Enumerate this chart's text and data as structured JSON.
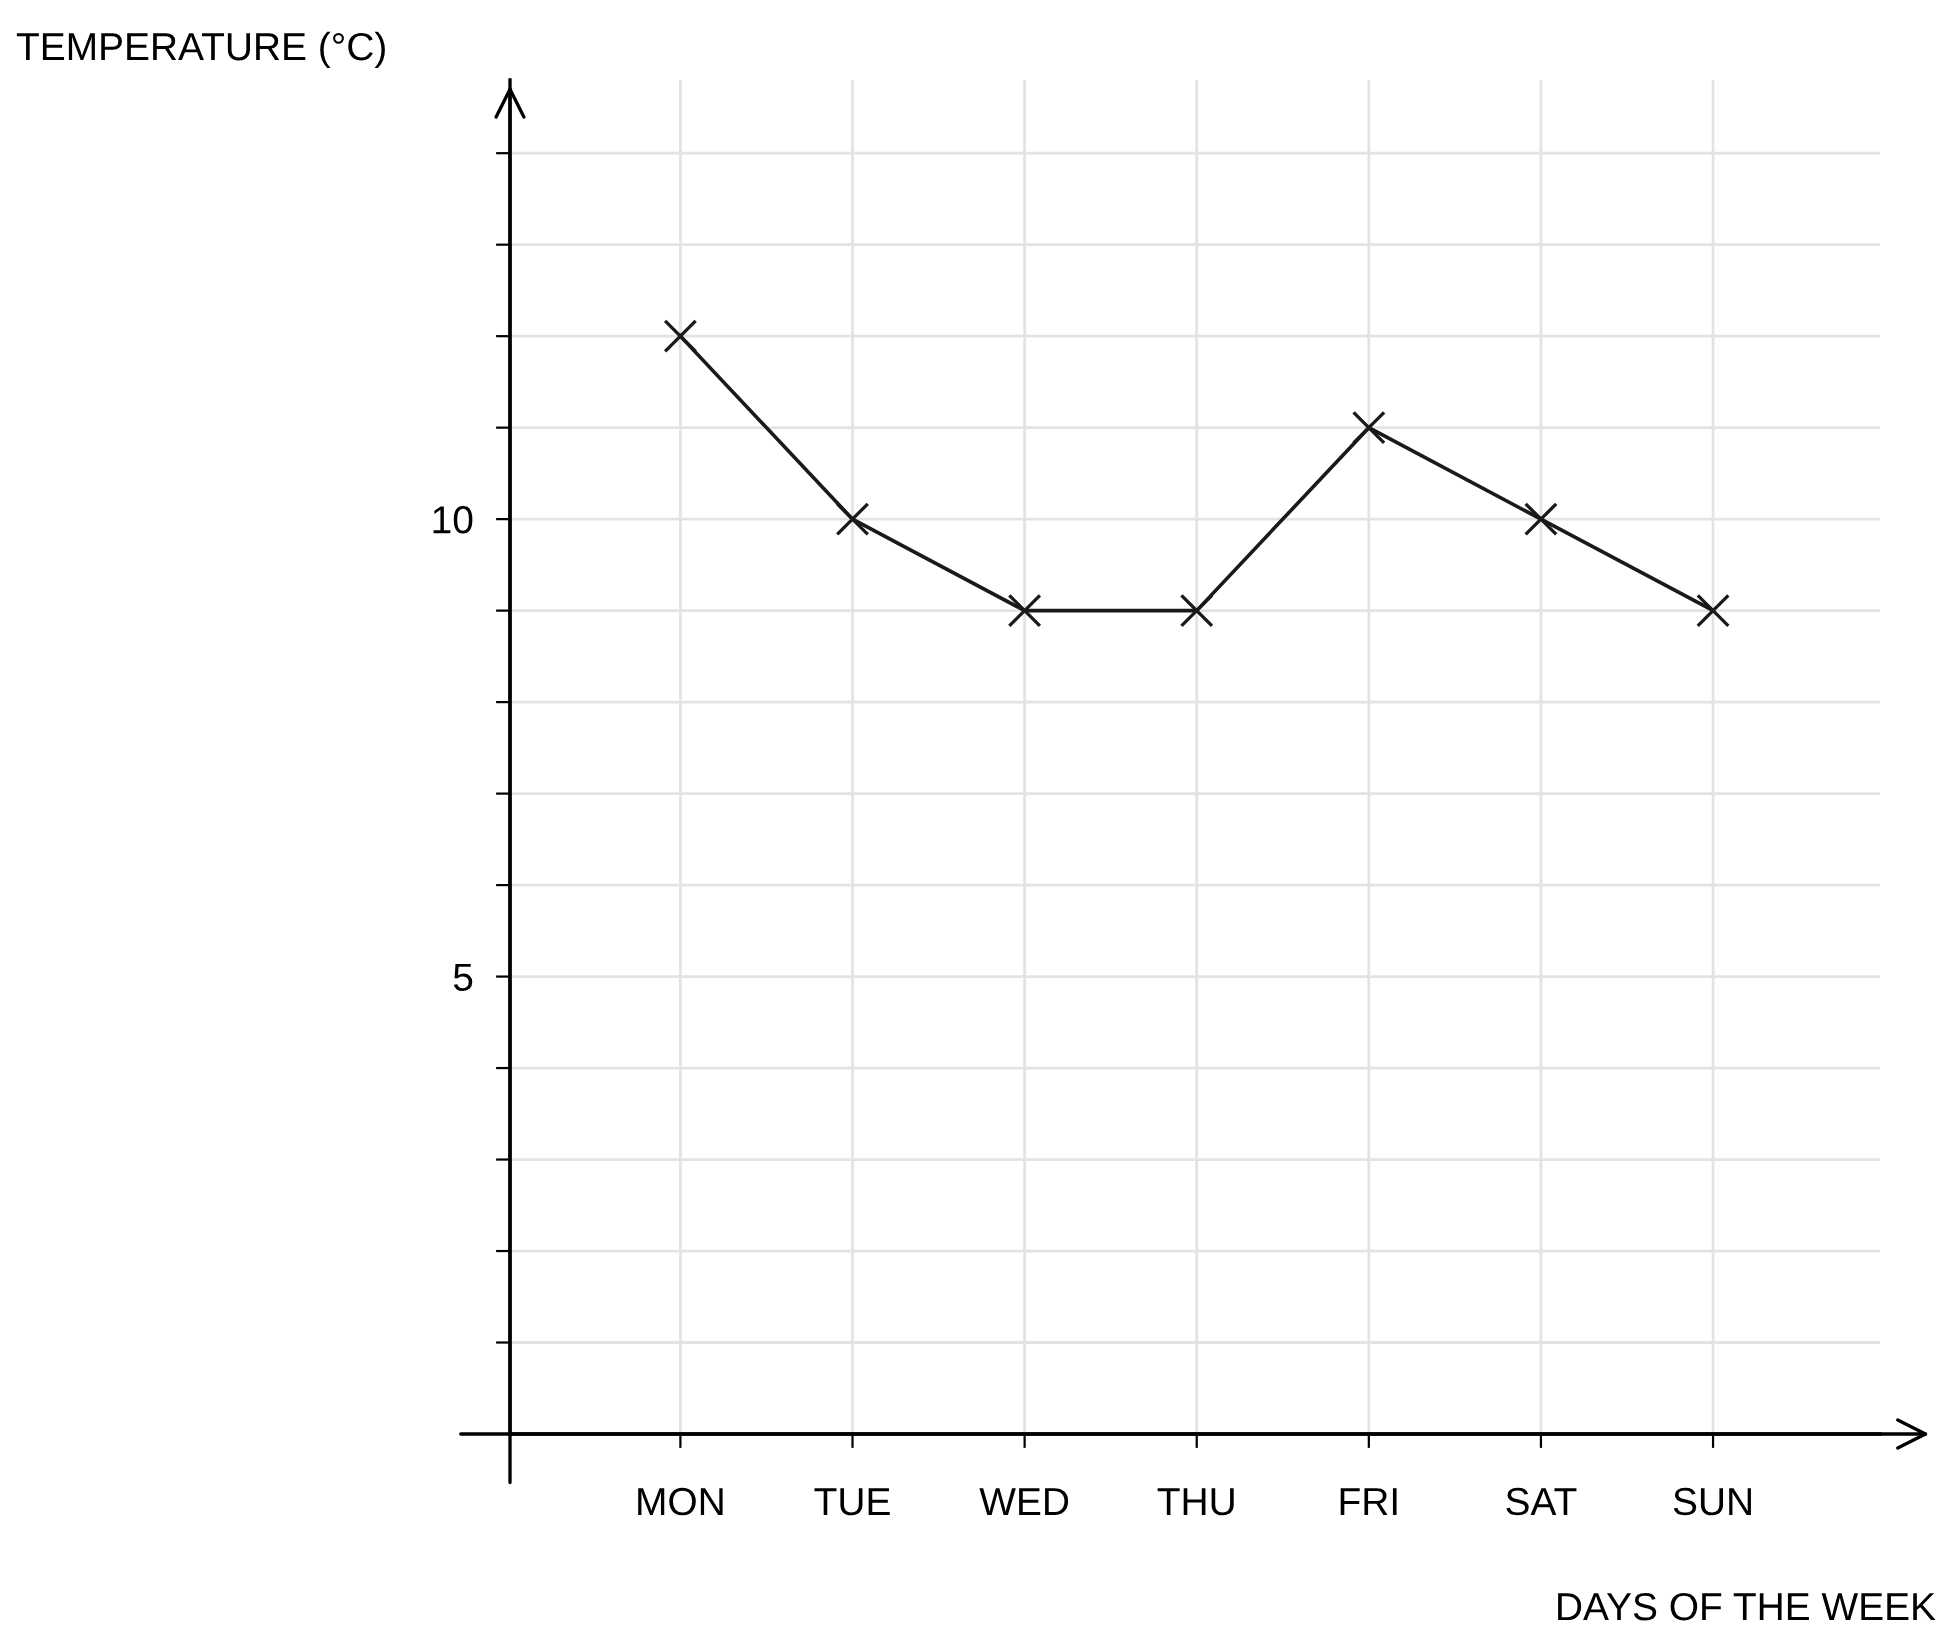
{
  "chart_data": {
    "type": "line",
    "xlabel": "DAYS OF THE WEEK",
    "ylabel": "TEMPERATURE (°C)",
    "categories": [
      "MON",
      "TUE",
      "WED",
      "THU",
      "FRI",
      "SAT",
      "SUN"
    ],
    "series": [
      {
        "color": "#1a1a1a",
        "values": [
          12,
          10,
          9,
          9,
          11,
          10,
          9
        ]
      }
    ],
    "ylim": [
      0,
      14.8
    ],
    "yticks": [
      {
        "value": 1,
        "label": null
      },
      {
        "value": 2,
        "label": null
      },
      {
        "value": 3,
        "label": null
      },
      {
        "value": 4,
        "label": null
      },
      5,
      {
        "value": 6,
        "label": null
      },
      {
        "value": 7,
        "label": null
      },
      {
        "value": 8,
        "label": null
      },
      {
        "value": 9,
        "label": null
      },
      10,
      {
        "value": 11,
        "label": null
      },
      {
        "value": 12,
        "label": null
      },
      {
        "value": 13,
        "label": null
      },
      {
        "value": 14,
        "label": null
      }
    ],
    "grid": true,
    "marker": "cross",
    "line_style": "solid",
    "legend": false
  }
}
